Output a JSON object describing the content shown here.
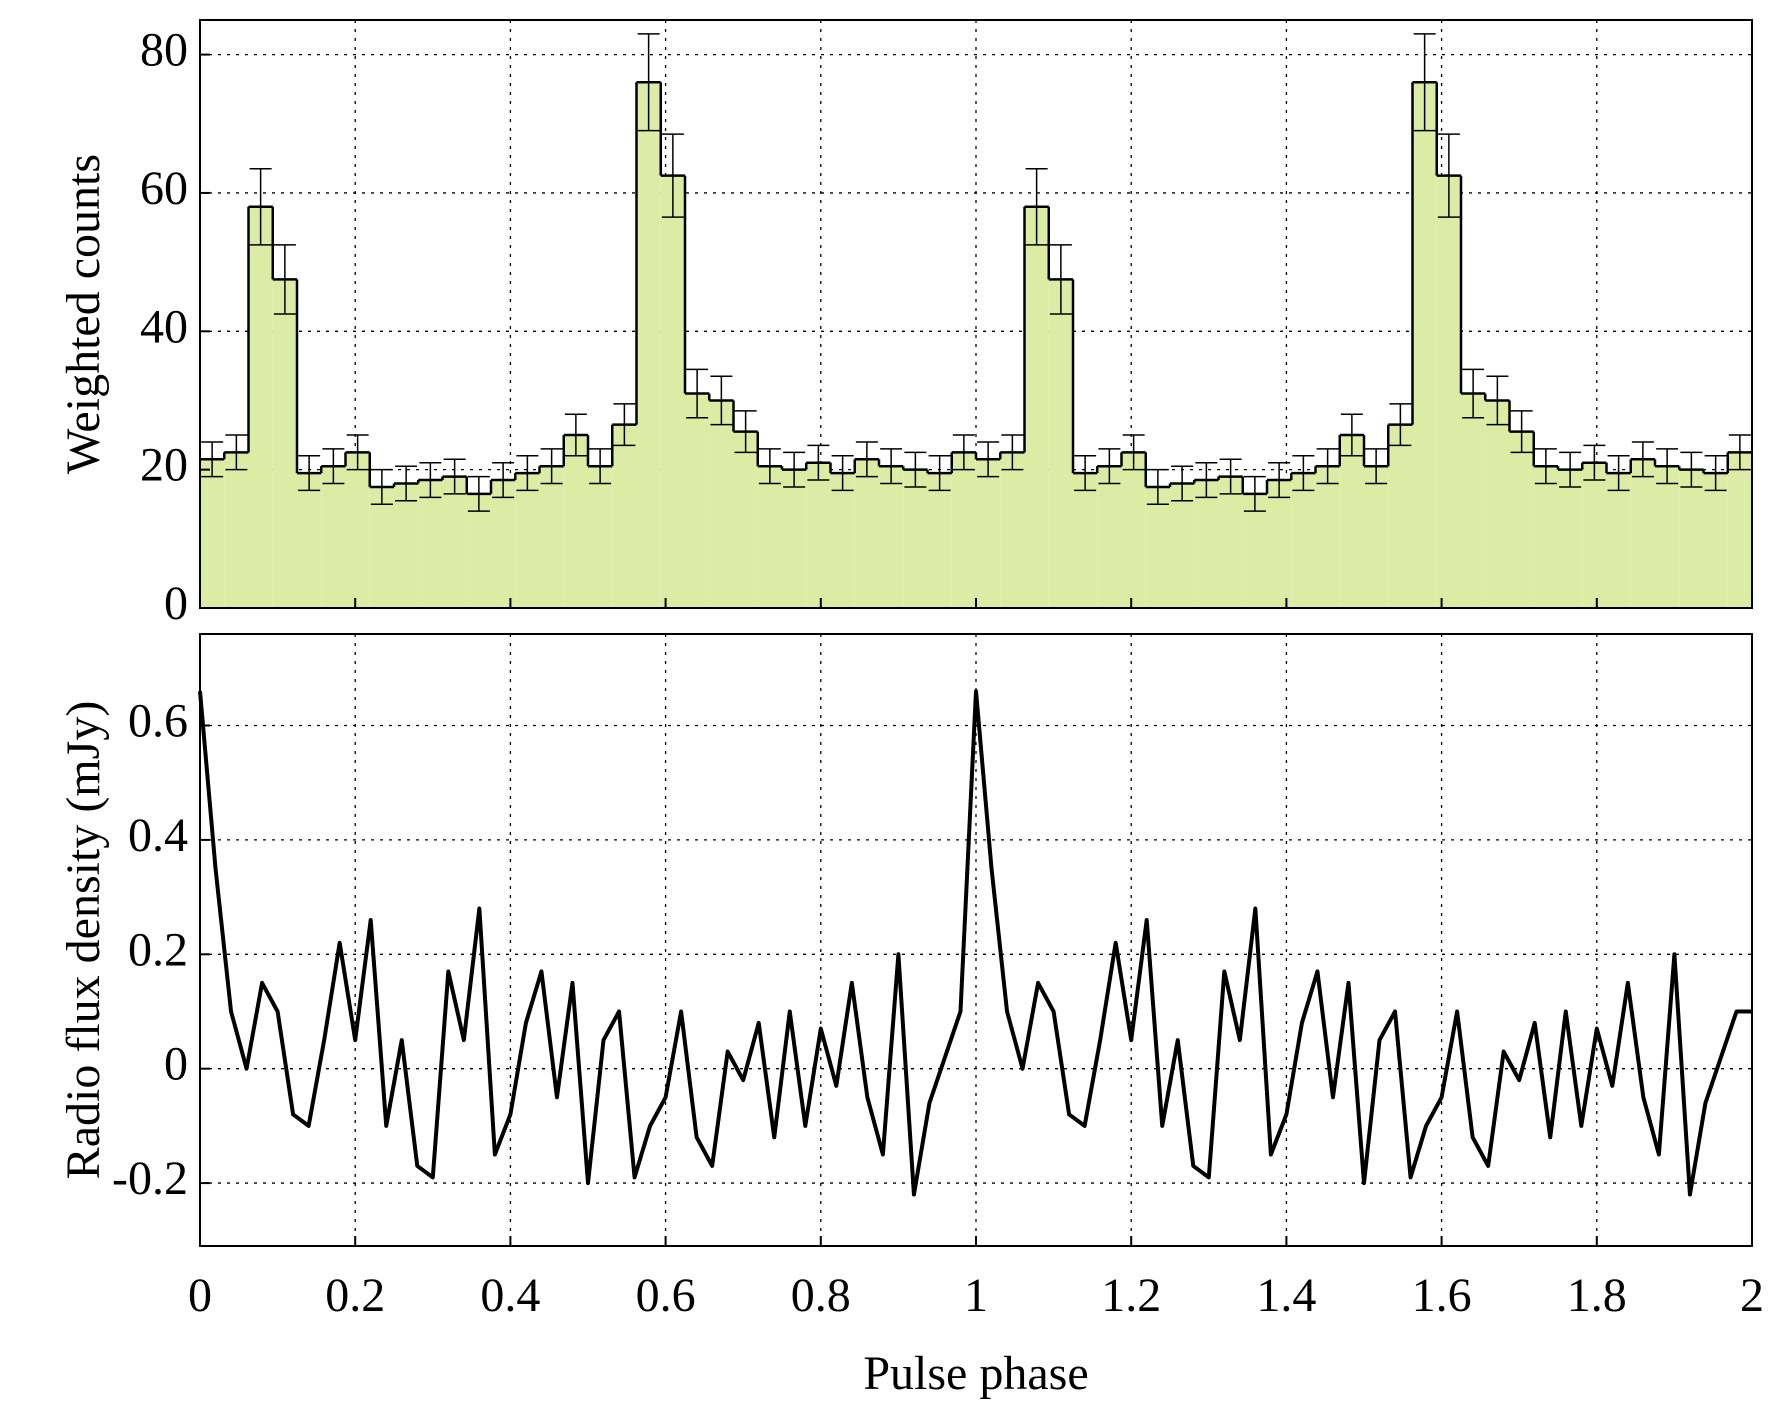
{
  "chart_data": [
    {
      "type": "histogram",
      "ylabel": "Weighted counts",
      "color": "#dceca4",
      "grid": true,
      "xlim": [
        0,
        2
      ],
      "xticks": [
        0,
        0.2,
        0.4,
        0.6,
        0.8,
        1,
        1.2,
        1.4,
        1.6,
        1.8,
        2
      ],
      "ylim": [
        0,
        85
      ],
      "yticks": [
        0,
        20,
        40,
        60,
        80
      ],
      "bins": [
        0,
        0.03125,
        0.0625,
        0.09375,
        0.125,
        0.15625,
        0.1875,
        0.21875,
        0.25,
        0.28125,
        0.3125,
        0.34375,
        0.375,
        0.40625,
        0.4375,
        0.46875,
        0.5,
        0.53125,
        0.5625,
        0.59375,
        0.625,
        0.65625,
        0.6875,
        0.71875,
        0.75,
        0.78125,
        0.8125,
        0.84375,
        0.875,
        0.90625,
        0.9375,
        0.96875,
        1,
        1.03125,
        1.0625,
        1.09375,
        1.125,
        1.15625,
        1.1875,
        1.21875,
        1.25,
        1.28125,
        1.3125,
        1.34375,
        1.375,
        1.40625,
        1.4375,
        1.46875,
        1.5,
        1.53125,
        1.5625,
        1.59375,
        1.625,
        1.65625,
        1.6875,
        1.71875,
        1.75,
        1.78125,
        1.8125,
        1.84375,
        1.875,
        1.90625,
        1.9375,
        1.96875,
        2
      ],
      "values": [
        21.5,
        22.5,
        58,
        47.5,
        19.5,
        20.5,
        22.5,
        17.5,
        18,
        18.5,
        19,
        16.5,
        18.5,
        19.5,
        20.5,
        25,
        20.5,
        26.5,
        76,
        62.5,
        31,
        30,
        25.5,
        20.5,
        20,
        21,
        19.5,
        21.5,
        20.5,
        20,
        19.5,
        22.5,
        21.5,
        22.5,
        58,
        47.5,
        19.5,
        20.5,
        22.5,
        17.5,
        18,
        18.5,
        19,
        16.5,
        18.5,
        19.5,
        20.5,
        25,
        20.5,
        26.5,
        76,
        62.5,
        31,
        30,
        25.5,
        20.5,
        20,
        21,
        19.5,
        21.5,
        20.5,
        20,
        19.5,
        22.5
      ],
      "errors": [
        2.5,
        2.5,
        5.5,
        5,
        2.5,
        2.5,
        2.5,
        2.5,
        2.5,
        2.5,
        2.5,
        2.5,
        2.5,
        2.5,
        2.5,
        3,
        2.5,
        3,
        7,
        6,
        3.5,
        3.5,
        3,
        2.5,
        2.5,
        2.5,
        2.5,
        2.5,
        2.5,
        2.5,
        2.5,
        2.5,
        2.5,
        2.5,
        5.5,
        5,
        2.5,
        2.5,
        2.5,
        2.5,
        2.5,
        2.5,
        2.5,
        2.5,
        2.5,
        2.5,
        2.5,
        3,
        2.5,
        3,
        7,
        6,
        3.5,
        3.5,
        3,
        2.5,
        2.5,
        2.5,
        2.5,
        2.5,
        2.5,
        2.5,
        2.5,
        2.5
      ]
    },
    {
      "type": "line",
      "ylabel": "Radio flux density (mJy)",
      "xlabel": "Pulse phase",
      "color": "#000000",
      "grid": true,
      "xlim": [
        0,
        2
      ],
      "xticks": [
        0,
        0.2,
        0.4,
        0.6,
        0.8,
        1,
        1.2,
        1.4,
        1.6,
        1.8,
        2
      ],
      "ylim": [
        -0.31,
        0.76
      ],
      "yticks": [
        -0.2,
        0,
        0.2,
        0.4,
        0.6
      ],
      "x": [
        0,
        0.02,
        0.04,
        0.06,
        0.08,
        0.1,
        0.12,
        0.14,
        0.16,
        0.18,
        0.2,
        0.22,
        0.24,
        0.26,
        0.28,
        0.3,
        0.32,
        0.34,
        0.36,
        0.38,
        0.4,
        0.42,
        0.44,
        0.46,
        0.48,
        0.5,
        0.52,
        0.54,
        0.56,
        0.58,
        0.6,
        0.62,
        0.64,
        0.66,
        0.68,
        0.7,
        0.72,
        0.74,
        0.76,
        0.78,
        0.8,
        0.82,
        0.84,
        0.86,
        0.88,
        0.9,
        0.92,
        0.94,
        0.96,
        0.98,
        1,
        1.02,
        1.04,
        1.06,
        1.08,
        1.1,
        1.12,
        1.14,
        1.16,
        1.18,
        1.2,
        1.22,
        1.24,
        1.26,
        1.28,
        1.3,
        1.32,
        1.34,
        1.36,
        1.38,
        1.4,
        1.42,
        1.44,
        1.46,
        1.48,
        1.5,
        1.52,
        1.54,
        1.56,
        1.58,
        1.6,
        1.62,
        1.64,
        1.66,
        1.68,
        1.7,
        1.72,
        1.74,
        1.76,
        1.78,
        1.8,
        1.82,
        1.84,
        1.86,
        1.88,
        1.9,
        1.92,
        1.94,
        1.96,
        1.98,
        2
      ],
      "values": [
        0.66,
        0.35,
        0.1,
        0,
        0.15,
        0.1,
        -0.08,
        -0.1,
        0.05,
        0.22,
        0.05,
        0.26,
        -0.1,
        0.05,
        -0.17,
        -0.19,
        0.17,
        0.05,
        0.28,
        -0.15,
        -0.08,
        0.08,
        0.17,
        -0.05,
        0.15,
        -0.2,
        0.05,
        0.1,
        -0.19,
        -0.1,
        -0.05,
        0.1,
        -0.12,
        -0.17,
        0.03,
        -0.02,
        0.08,
        -0.12,
        0.1,
        -0.1,
        0.07,
        -0.03,
        0.15,
        -0.05,
        -0.15,
        0.2,
        -0.22,
        -0.06,
        0.02,
        0.1,
        0.66,
        0.35,
        0.1,
        0,
        0.15,
        0.1,
        -0.08,
        -0.1,
        0.05,
        0.22,
        0.05,
        0.26,
        -0.1,
        0.05,
        -0.17,
        -0.19,
        0.17,
        0.05,
        0.28,
        -0.15,
        -0.08,
        0.08,
        0.17,
        -0.05,
        0.15,
        -0.2,
        0.05,
        0.1,
        -0.19,
        -0.1,
        -0.05,
        0.1,
        -0.12,
        -0.17,
        0.03,
        -0.02,
        0.08,
        -0.12,
        0.1,
        -0.1,
        0.07,
        -0.03,
        0.15,
        -0.05,
        -0.15,
        0.2,
        -0.22,
        -0.06,
        0.02,
        0.1,
        0.1
      ]
    }
  ]
}
